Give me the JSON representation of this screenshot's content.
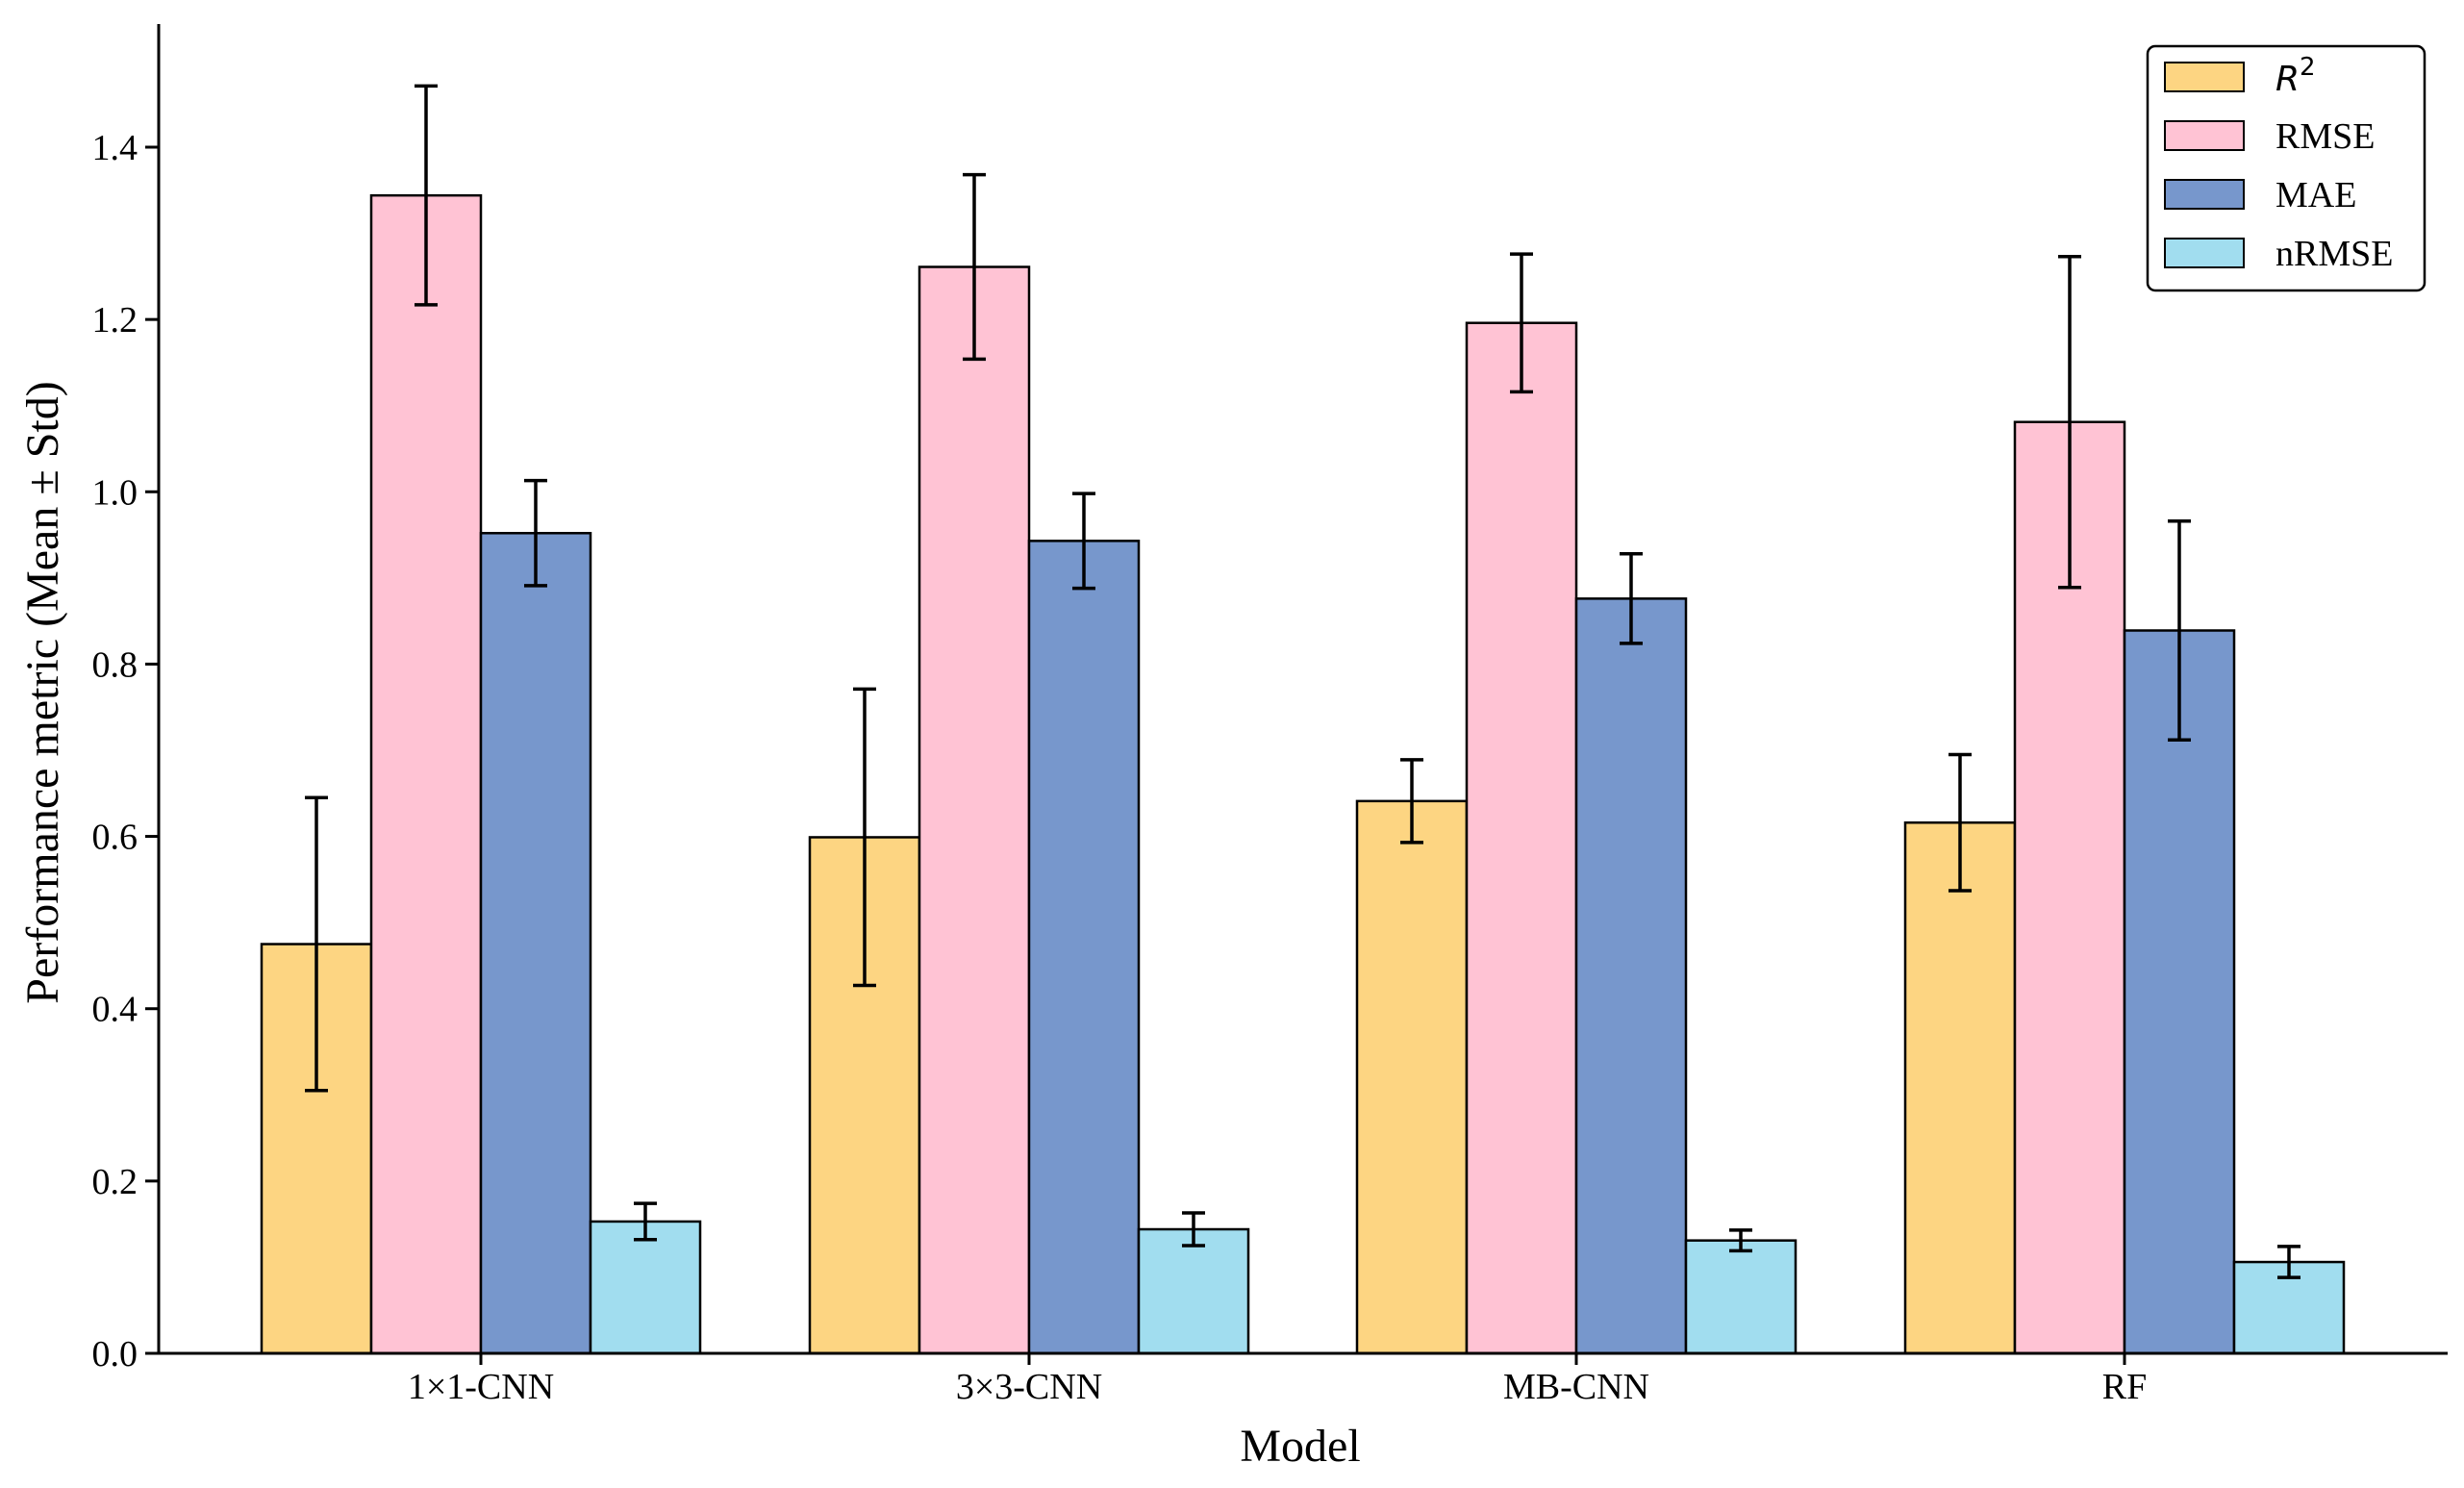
{
  "chart_data": {
    "type": "bar",
    "title": "",
    "xlabel": "Model",
    "ylabel": "Performance metric (Mean ± Std)",
    "ylim": [
      0,
      1.55
    ],
    "yticks": [
      "0.0",
      "0.2",
      "0.4",
      "0.6",
      "0.8",
      "1.0",
      "1.2",
      "1.4"
    ],
    "categories": [
      "1×1-CNN",
      "3×3-CNN",
      "MB-CNN",
      "RF"
    ],
    "series": [
      {
        "name": "R²",
        "legend_main": "R",
        "legend_sup": "2",
        "color": "#FDD582",
        "values": [
          0.475,
          0.599,
          0.641,
          0.616
        ],
        "errors": [
          0.17,
          0.172,
          0.048,
          0.079
        ]
      },
      {
        "name": "RMSE",
        "color": "#FFC3D4",
        "values": [
          1.344,
          1.261,
          1.196,
          1.081
        ],
        "errors": [
          0.127,
          0.107,
          0.08,
          0.192
        ]
      },
      {
        "name": "MAE",
        "color": "#7797CC",
        "values": [
          0.952,
          0.943,
          0.876,
          0.839
        ],
        "errors": [
          0.061,
          0.055,
          0.052,
          0.127
        ]
      },
      {
        "name": "nRMSE",
        "color": "#A1DDEF",
        "values": [
          0.153,
          0.144,
          0.131,
          0.106
        ],
        "errors": [
          0.021,
          0.019,
          0.012,
          0.018
        ]
      }
    ],
    "legend_position": "top-right",
    "grid": false
  }
}
